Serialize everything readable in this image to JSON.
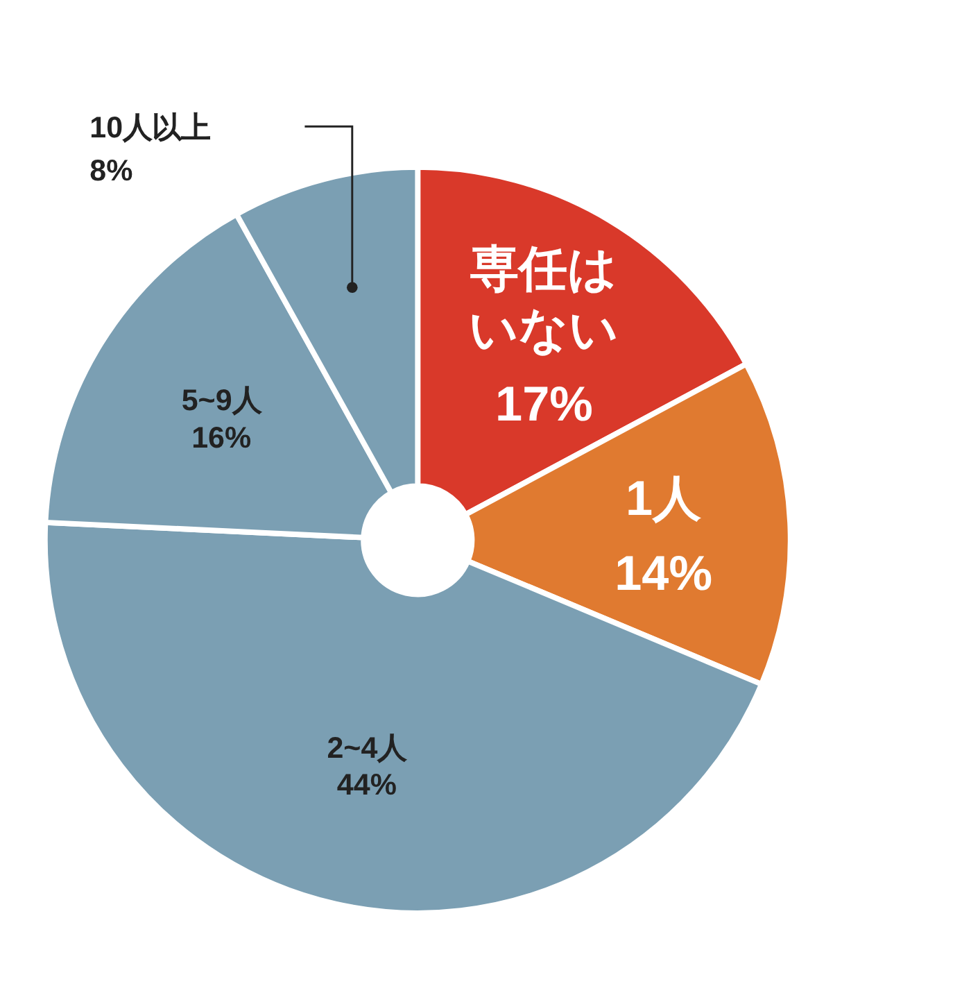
{
  "chart_data": {
    "type": "donut",
    "categories": [
      "専任はいない",
      "1人",
      "2~4人",
      "5~9人",
      "10人以上"
    ],
    "values": [
      17,
      14,
      44,
      16,
      8
    ],
    "value_labels": [
      "17%",
      "14%",
      "44%",
      "16%",
      "8%"
    ],
    "colors": [
      "#d9392a",
      "#e07a30",
      "#7b9fb3",
      "#7b9fb3",
      "#7b9fb3"
    ]
  }
}
